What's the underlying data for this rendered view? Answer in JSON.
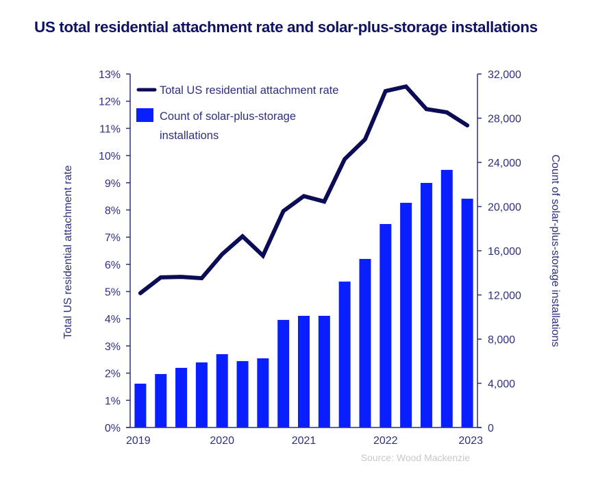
{
  "chart_data": {
    "type": "bar",
    "title": "US total residential attachment rate and solar-plus-storage installations",
    "source": "Source: Wood Mackenzie",
    "x_tick_labels": [
      "2019",
      "2020",
      "2021",
      "2022",
      "2023"
    ],
    "x_tick_positions": [
      0,
      4,
      8,
      12,
      16
    ],
    "categories": [
      "2019 Q1",
      "2019 Q2",
      "2019 Q3",
      "2019 Q4",
      "2020 Q1",
      "2020 Q2",
      "2020 Q3",
      "2020 Q4",
      "2021 Q1",
      "2021 Q2",
      "2021 Q3",
      "2021 Q4",
      "2022 Q1",
      "2022 Q2",
      "2022 Q3",
      "2022 Q4",
      "2023 Q1"
    ],
    "left_axis": {
      "label": "Total US residential attachment rate",
      "range": [
        0,
        13
      ],
      "ticks": [
        "0%",
        "1%",
        "2%",
        "3%",
        "4%",
        "5%",
        "6%",
        "7%",
        "8%",
        "9%",
        "10%",
        "11%",
        "12%",
        "13%"
      ]
    },
    "right_axis": {
      "label": "Count of solar-plus-storage installations",
      "range": [
        0,
        32000
      ],
      "ticks": [
        "0",
        "4,000",
        "8,000",
        "12,000",
        "16,000",
        "20,000",
        "24,000",
        "28,000",
        "32,000"
      ]
    },
    "series": [
      {
        "name": "Count of solar-plus-storage installations",
        "type": "bar",
        "axis": "right",
        "color": "#0a1fff",
        "values": [
          3970,
          4840,
          5400,
          5890,
          6640,
          6010,
          6260,
          9740,
          10110,
          10110,
          13210,
          15260,
          18420,
          20340,
          22140,
          23320,
          20710
        ]
      },
      {
        "name": "Total US residential attachment rate",
        "type": "line",
        "axis": "left",
        "color": "#0b0c55",
        "unit": "%",
        "values": [
          4.94,
          5.52,
          5.54,
          5.49,
          6.37,
          7.03,
          6.32,
          7.96,
          8.51,
          8.31,
          9.87,
          10.6,
          12.37,
          12.54,
          11.71,
          11.59,
          11.11
        ]
      }
    ],
    "legend": {
      "position": "top-left",
      "items": [
        {
          "label": "Total US residential attachment rate",
          "symbol": "line"
        },
        {
          "label_line1": "Count of solar-plus-storage",
          "label_line2": "installations",
          "symbol": "square"
        }
      ]
    },
    "grid": false
  },
  "colors": {
    "axis": "#2e2f7e",
    "title": "#0f1262",
    "bar": "#0a1fff",
    "line": "#0b0c55",
    "source": "#c8c8c8"
  }
}
